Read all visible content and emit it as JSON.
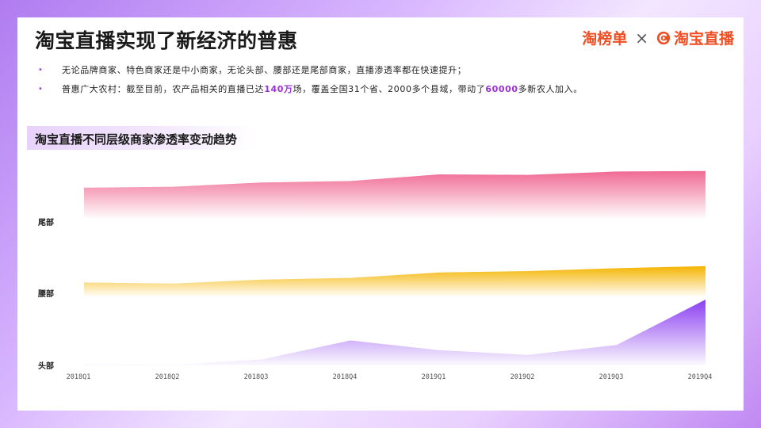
{
  "header": {
    "title": "淘宝直播实现了新经济的普惠",
    "logo_left": "淘榜单",
    "logo_separator": "×",
    "logo_right": "淘宝直播",
    "logo_right_icon": "play-c-icon"
  },
  "bullets": [
    {
      "text": "无论品牌商家、特色商家还是中小商家，无论头部、腰部还是尾部商家，直播渗透率都在快速提升；"
    },
    {
      "before": "普惠广大农村：截至目前，农产品相关的直播已达",
      "h1": "140万",
      "mid": "场，覆盖全国31个省、2000多个县域，带动了",
      "h2": "60000",
      "after": "多新农人加入。"
    }
  ],
  "colors": {
    "accent": "#9b2fd6",
    "tail": "#f06a93",
    "waist": "#f5b400",
    "head": "#8a3ff0",
    "bullet": "#a33bd8"
  },
  "chart_data": {
    "type": "area",
    "title": "淘宝直播不同层级商家渗透率变动趋势",
    "categories": [
      "2018Q1",
      "2018Q2",
      "2018Q3",
      "2018Q4",
      "2019Q1",
      "2019Q2",
      "2019Q3",
      "2019Q4"
    ],
    "series": [
      {
        "name": "尾部",
        "values": [
          0.47,
          0.49,
          0.58,
          0.61,
          0.75,
          0.74,
          0.81,
          0.82
        ]
      },
      {
        "name": "腰部",
        "values": [
          0.28,
          0.25,
          0.36,
          0.41,
          0.56,
          0.6,
          0.68,
          0.74
        ]
      },
      {
        "name": "头部",
        "values": [
          0.02,
          0.01,
          0.09,
          0.38,
          0.23,
          0.16,
          0.31,
          1.0
        ]
      }
    ],
    "note": "values are relative levels (no numeric axis shown)"
  }
}
